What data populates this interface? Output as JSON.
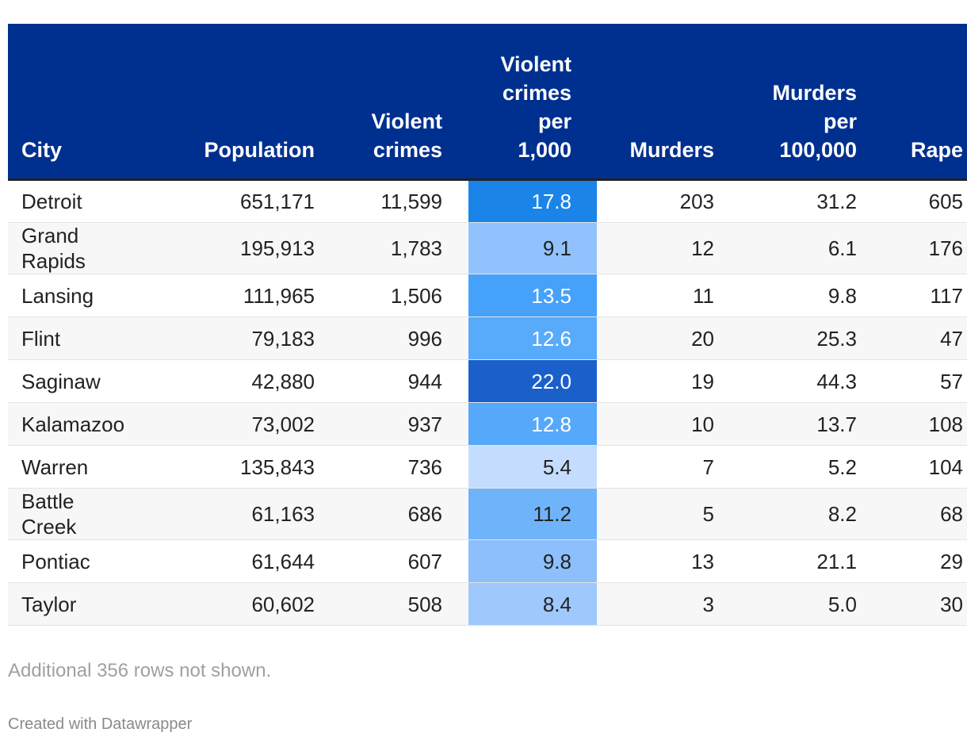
{
  "table": {
    "columns": [
      [
        "City"
      ],
      [
        "Population"
      ],
      [
        "Violent",
        "crimes"
      ],
      [
        "Violent",
        "crimes",
        "per",
        "1,000"
      ],
      [
        "Murders"
      ],
      [
        "Murders",
        "per",
        "100,000"
      ],
      [
        "Rape"
      ]
    ],
    "rows": [
      [
        "Detroit",
        "651,171",
        "11,599",
        "17.8",
        "203",
        "31.2",
        "605"
      ],
      [
        "Grand Rapids",
        "195,913",
        "1,783",
        "9.1",
        "12",
        "6.1",
        "176"
      ],
      [
        "Lansing",
        "111,965",
        "1,506",
        "13.5",
        "11",
        "9.8",
        "117"
      ],
      [
        "Flint",
        "79,183",
        "996",
        "12.6",
        "20",
        "25.3",
        "47"
      ],
      [
        "Saginaw",
        "42,880",
        "944",
        "22.0",
        "19",
        "44.3",
        "57"
      ],
      [
        "Kalamazoo",
        "73,002",
        "937",
        "12.8",
        "10",
        "13.7",
        "108"
      ],
      [
        "Warren",
        "135,843",
        "736",
        "5.4",
        "7",
        "5.2",
        "104"
      ],
      [
        "Battle Creek",
        "61,163",
        "686",
        "11.2",
        "5",
        "8.2",
        "68"
      ],
      [
        "Pontiac",
        "61,644",
        "607",
        "9.8",
        "13",
        "21.1",
        "29"
      ],
      [
        "Taylor",
        "60,602",
        "508",
        "8.4",
        "3",
        "5.0",
        "30"
      ]
    ],
    "highlight_column": 3,
    "highlight_colors": [
      "#1a84e8",
      "#92c2fd",
      "#46a1fa",
      "#58aafa",
      "#1b5fcb",
      "#55a8fa",
      "#c4ddfe",
      "#6fb4fb",
      "#8cbffc",
      "#9fc9fd"
    ],
    "highlight_text_colors": [
      "#ffffff",
      "#222222",
      "#ffffff",
      "#ffffff",
      "#ffffff",
      "#ffffff",
      "#222222",
      "#222222",
      "#222222",
      "#222222"
    ]
  },
  "note": "Additional 356 rows not shown.",
  "footer": "Created with Datawrapper"
}
